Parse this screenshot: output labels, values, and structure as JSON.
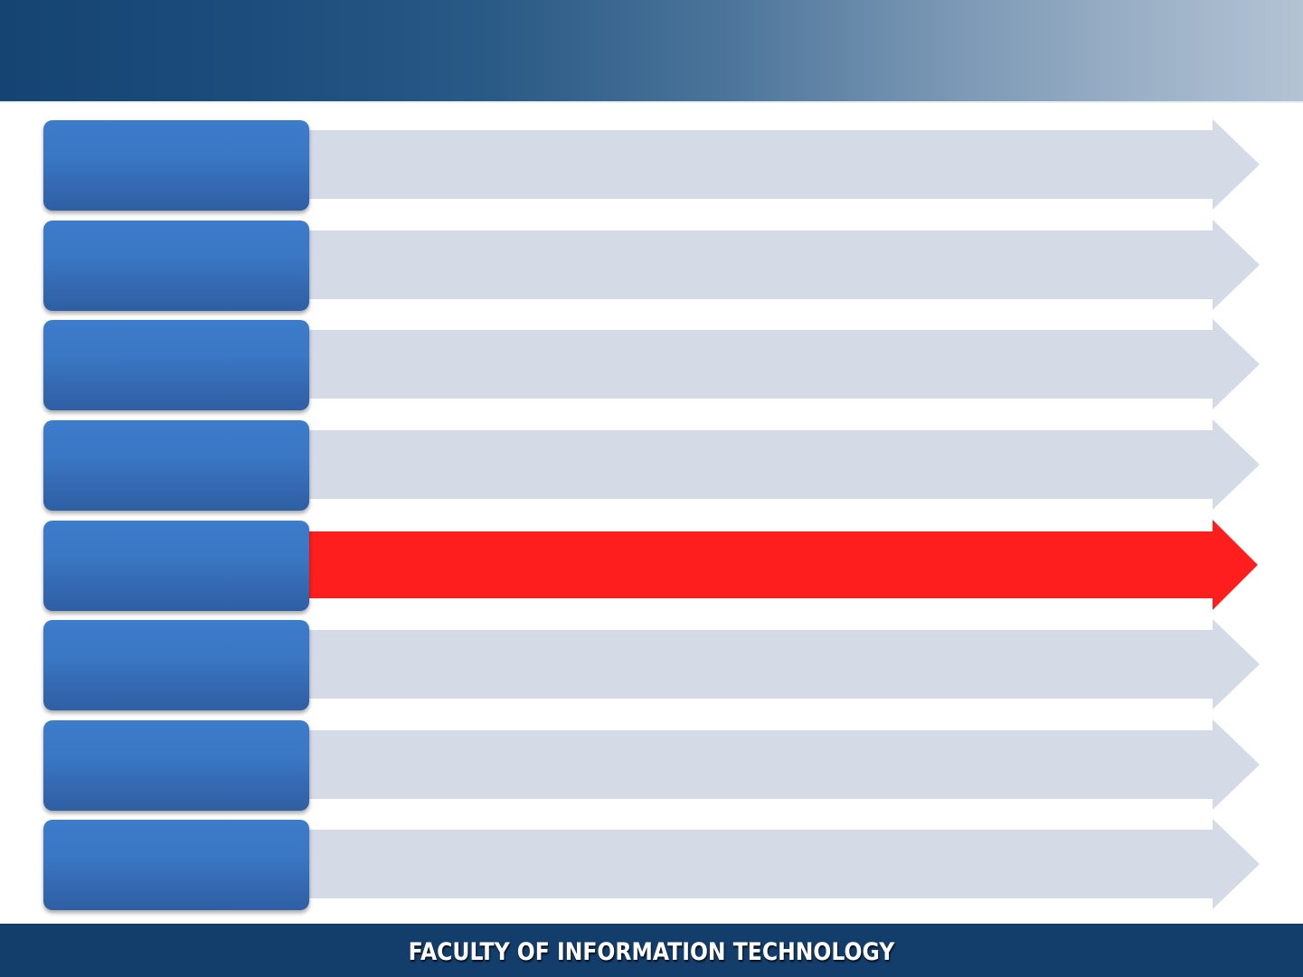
{
  "footer": {
    "title": "FACULTY OF INFORMATION TECHNOLOGY"
  },
  "colors": {
    "header_dark": "#154472",
    "header_light": "#b3c3d4",
    "tab_blue": "#3a77c4",
    "arrow_inactive": "#d4dbe7",
    "arrow_active": "#ff1e1e",
    "footer_band": "#133d6a"
  },
  "rows": [
    {
      "active": false
    },
    {
      "active": false
    },
    {
      "active": false
    },
    {
      "active": false
    },
    {
      "active": true
    },
    {
      "active": false
    },
    {
      "active": false
    },
    {
      "active": false
    }
  ]
}
